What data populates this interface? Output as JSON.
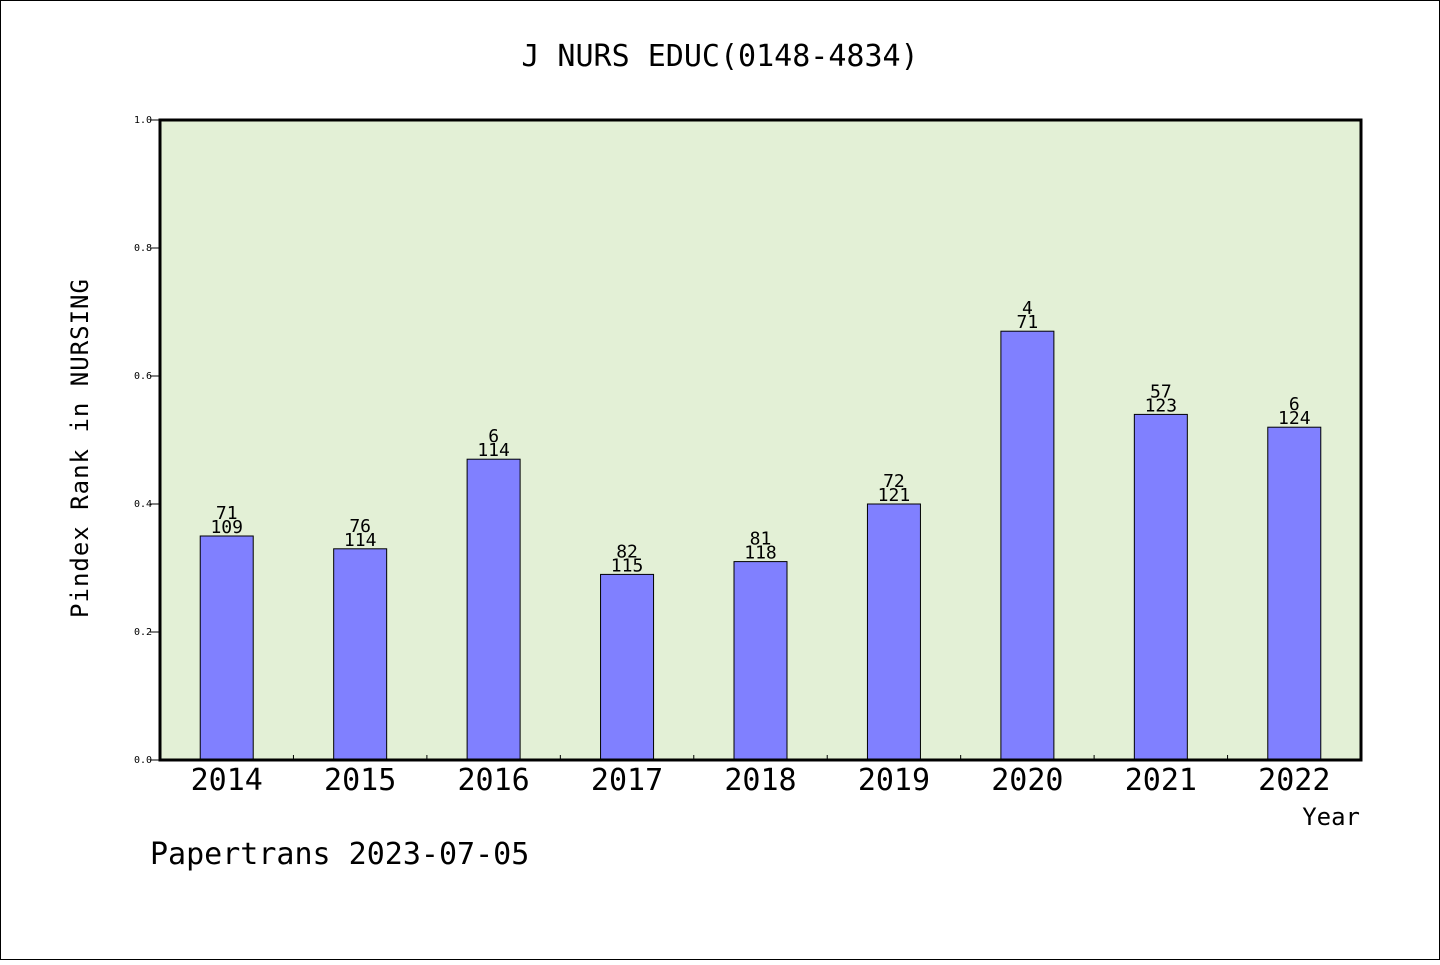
{
  "chart_data": {
    "type": "bar",
    "title": "J NURS EDUC(0148-4834)",
    "xlabel": "Year",
    "ylabel": "Pindex Rank in NURSING",
    "ylim": [
      0,
      1.0
    ],
    "yticks": [
      "0.0",
      "0.2",
      "0.4",
      "0.6",
      "0.8",
      "1.0"
    ],
    "categories": [
      "2014",
      "2015",
      "2016",
      "2017",
      "2018",
      "2019",
      "2020",
      "2021",
      "2022"
    ],
    "values": [
      0.35,
      0.33,
      0.47,
      0.29,
      0.31,
      0.4,
      0.67,
      0.54,
      0.52
    ],
    "rank": [
      "71",
      "76",
      "6",
      "82",
      "81",
      "72",
      "4",
      "57",
      "6"
    ],
    "total": [
      "109",
      "114",
      "114",
      "115",
      "118",
      "121",
      "71",
      "123",
      "124"
    ],
    "grid": false,
    "legend": "none",
    "colors": {
      "plot_background": "#e3f0d6",
      "bar_fill": "#8080ff",
      "bar_stroke": "#000000"
    }
  },
  "footer": "Papertrans 2023-07-05"
}
